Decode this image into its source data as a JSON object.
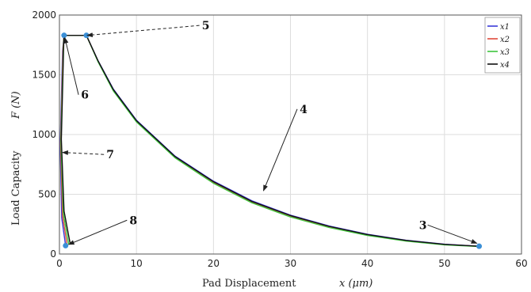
{
  "chart_data": {
    "type": "line",
    "xlabel": "Pad Displacement",
    "xlabel_var": "x (μm)",
    "ylabel": "Load Capacity",
    "ylabel_var": "F (N)",
    "xlim": [
      0,
      60
    ],
    "ylim": [
      0,
      2000
    ],
    "xticks": [
      0,
      10,
      20,
      30,
      40,
      50,
      60
    ],
    "yticks": [
      0,
      500,
      1000,
      1500,
      2000
    ],
    "grid": true,
    "legend_position": "top-right",
    "series": [
      {
        "name": "x1",
        "color": "#3a3ad8",
        "x": [
          0.8,
          0.3,
          0.1,
          0.4,
          0.6,
          3.5,
          5,
          7,
          10,
          15,
          20,
          25,
          30,
          35,
          40,
          45,
          50,
          54.5
        ],
        "y": [
          70,
          300,
          900,
          1700,
          1830,
          1830,
          1620,
          1380,
          1120,
          820,
          610,
          445,
          325,
          235,
          165,
          115,
          82,
          65
        ]
      },
      {
        "name": "x2",
        "color": "#e04a3a",
        "x": [
          1.0,
          0.4,
          0.15,
          0.45,
          0.6,
          3.5,
          5,
          7,
          10,
          15,
          20,
          25,
          30,
          35,
          40,
          45,
          50,
          54.5
        ],
        "y": [
          75,
          320,
          920,
          1710,
          1830,
          1830,
          1615,
          1372,
          1112,
          812,
          600,
          436,
          318,
          228,
          160,
          112,
          80,
          64
        ]
      },
      {
        "name": "x3",
        "color": "#3ec43e",
        "x": [
          1.2,
          0.5,
          0.2,
          0.5,
          0.6,
          3.5,
          5,
          7,
          10,
          15,
          20,
          25,
          30,
          35,
          40,
          45,
          50,
          54.5
        ],
        "y": [
          80,
          340,
          940,
          1720,
          1830,
          1830,
          1610,
          1365,
          1105,
          805,
          592,
          428,
          310,
          222,
          155,
          108,
          77,
          62
        ]
      },
      {
        "name": "x4",
        "color": "#111111",
        "x": [
          1.4,
          0.6,
          0.25,
          0.55,
          0.6,
          3.5,
          5,
          7,
          10,
          15,
          20,
          25,
          30,
          35,
          40,
          45,
          50,
          54.5
        ],
        "y": [
          85,
          360,
          960,
          1730,
          1830,
          1830,
          1618,
          1376,
          1116,
          816,
          605,
          440,
          322,
          232,
          163,
          114,
          81,
          65
        ]
      }
    ],
    "points": [
      {
        "x": 0.6,
        "y": 1830
      },
      {
        "x": 3.5,
        "y": 1830
      },
      {
        "x": 0.8,
        "y": 70
      },
      {
        "x": 54.5,
        "y": 65
      }
    ],
    "annotations": [
      {
        "label": "5",
        "text_at": [
          19,
          1880
        ],
        "target": [
          3.6,
          1830
        ],
        "dashed": true
      },
      {
        "label": "6",
        "text_at": [
          3.3,
          1300
        ],
        "target": [
          0.7,
          1810
        ],
        "dashed": false
      },
      {
        "label": "7",
        "text_at": [
          6.6,
          800
        ],
        "target": [
          0.4,
          850
        ],
        "dashed": true
      },
      {
        "label": "8",
        "text_at": [
          9.6,
          250
        ],
        "target": [
          1.2,
          80
        ],
        "dashed": false
      },
      {
        "label": "4",
        "text_at": [
          31.7,
          1180
        ],
        "target": [
          26.5,
          530
        ],
        "dashed": false
      },
      {
        "label": "3",
        "text_at": [
          47.2,
          210
        ],
        "target": [
          54.2,
          90
        ],
        "dashed": false
      }
    ]
  }
}
